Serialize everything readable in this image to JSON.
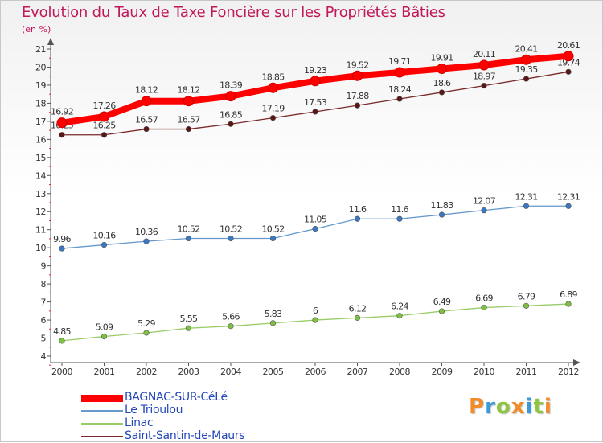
{
  "title": "Evolution du Taux de Taxe Foncière sur les Propriétés Bâties",
  "unit_label": "(en %)",
  "brand": {
    "letters": [
      "P",
      "r",
      "o",
      "x",
      "i",
      "t",
      "i"
    ],
    "colors": [
      "#f28c28",
      "#3a9ad9",
      "#8cc63f",
      "#f28c28",
      "#3a9ad9",
      "#8cc63f",
      "#f28c28"
    ]
  },
  "chart_data": {
    "type": "line",
    "title": "Evolution du Taux de Taxe Foncière sur les Propriétés Bâties",
    "ylabel": "(en %)",
    "xlabel": "",
    "ylim": [
      4,
      21
    ],
    "yticks": [
      "4",
      "5",
      "6",
      "7",
      "8",
      "9",
      "10",
      "11",
      "12",
      "13",
      "14",
      "15",
      "16",
      "17",
      "18",
      "19",
      "20",
      "21"
    ],
    "categories": [
      "2000",
      "2001",
      "2002",
      "2003",
      "2004",
      "2005",
      "2006",
      "2007",
      "2008",
      "2009",
      "2010",
      "2011",
      "2012"
    ],
    "grid": false,
    "legend_position": "bottom-left",
    "series": [
      {
        "name": "BAGNAC-SUR-CéLé",
        "color": "#ff0000",
        "style": "thick",
        "values": [
          16.92,
          17.26,
          18.12,
          18.12,
          18.39,
          18.85,
          19.23,
          19.52,
          19.71,
          19.91,
          20.11,
          20.41,
          20.61
        ],
        "labels": [
          "16.92",
          "17.26",
          "18.12",
          "18.12",
          "18.39",
          "18.85",
          "19.23",
          "19.52",
          "19.71",
          "19.91",
          "20.11",
          "20.41",
          "20.61"
        ]
      },
      {
        "name": "Le Trioulou",
        "color": "#6699cc",
        "marker": "#3a78c2",
        "style": "thin",
        "values": [
          9.96,
          10.16,
          10.36,
          10.52,
          10.52,
          10.52,
          11.05,
          11.6,
          11.6,
          11.83,
          12.07,
          12.31,
          12.31
        ],
        "labels": [
          "9.96",
          "10.16",
          "10.36",
          "10.52",
          "10.52",
          "10.52",
          "11.05",
          "11.6",
          "11.6",
          "11.83",
          "12.07",
          "12.31",
          "12.31"
        ]
      },
      {
        "name": "Linac",
        "color": "#99cc66",
        "marker": "#7ec043",
        "style": "thin",
        "values": [
          4.85,
          5.09,
          5.29,
          5.55,
          5.66,
          5.83,
          6,
          6.12,
          6.24,
          6.49,
          6.69,
          6.79,
          6.89
        ],
        "labels": [
          "4.85",
          "5.09",
          "5.29",
          "5.55",
          "5.66",
          "5.83",
          "6",
          "6.12",
          "6.24",
          "6.49",
          "6.69",
          "6.79",
          "6.89"
        ]
      },
      {
        "name": "Saint-Santin-de-Maurs",
        "color": "#7a2a2a",
        "marker": "#5a1515",
        "style": "thin",
        "values": [
          16.25,
          16.25,
          16.57,
          16.57,
          16.85,
          17.19,
          17.53,
          17.88,
          18.24,
          18.6,
          18.97,
          19.35,
          19.74
        ],
        "labels": [
          "16.25",
          "16.25",
          "16.57",
          "16.57",
          "16.85",
          "17.19",
          "17.53",
          "17.88",
          "18.24",
          "18.6",
          "18.97",
          "19.35",
          "19.74"
        ]
      }
    ]
  }
}
